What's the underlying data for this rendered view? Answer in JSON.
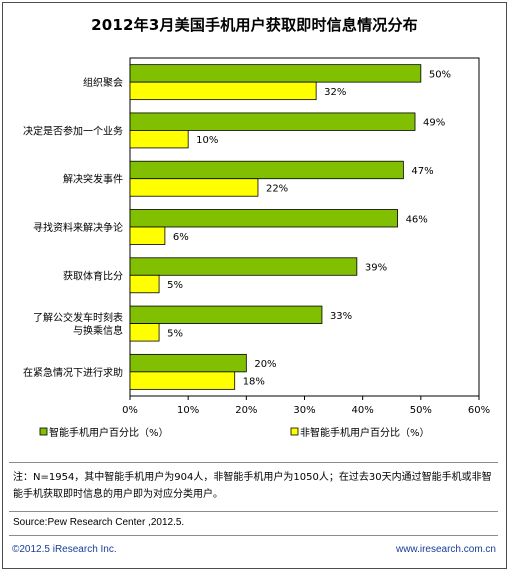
{
  "chart_data": {
    "type": "bar",
    "orientation": "horizontal",
    "title": "2012年3月美国手机用户获取即时信息情况分布",
    "categories": [
      "组织聚会",
      "决定是否参加一个业务",
      "解决突发事件",
      "寻找资料来解决争论",
      "获取体育比分",
      "了解公交发车时刻表与换乘信息",
      "在紧急情况下进行求助"
    ],
    "category_lines": [
      [
        "组织聚会"
      ],
      [
        "决定是否参加一个业务"
      ],
      [
        "解决突发事件"
      ],
      [
        "寻找资料来解决争论"
      ],
      [
        "获取体育比分"
      ],
      [
        "了解公交发车时刻表",
        "与换乘信息"
      ],
      [
        "在紧急情况下进行求助"
      ]
    ],
    "series": [
      {
        "name": "智能手机用户百分比（%）",
        "color": "#80c000",
        "values": [
          50,
          49,
          47,
          46,
          39,
          33,
          20
        ]
      },
      {
        "name": "非智能手机用户百分比（%）",
        "color": "#ffff00",
        "values": [
          32,
          10,
          22,
          6,
          5,
          5,
          18
        ]
      }
    ],
    "value_suffix": "%",
    "xlim": [
      0,
      60
    ],
    "xticks": [
      "0%",
      "10%",
      "20%",
      "30%",
      "40%",
      "50%",
      "60%"
    ],
    "grid": false,
    "legend_position": "bottom"
  },
  "note": "注：N=1954，其中智能手机用户为904人，非智能手机用户为1050人；在过去30天内通过智能手机或非智能手机获取即时信息的用户即为对应分类用户。",
  "source": "Source:Pew Research Center ,2012.5.",
  "footer": {
    "copyright": "©2012.5 iResearch Inc.",
    "website": "www.iresearch.com.cn"
  }
}
